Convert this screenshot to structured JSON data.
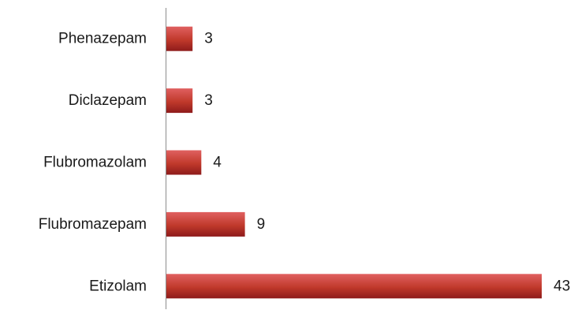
{
  "chart_data": {
    "type": "bar",
    "orientation": "horizontal",
    "categories": [
      "Phenazepam",
      "Diclazepam",
      "Flubromazolam",
      "Flubromazepam",
      "Etizolam"
    ],
    "values": [
      3,
      3,
      4,
      9,
      43
    ],
    "data_labels": [
      "3",
      "3",
      "4",
      "9",
      "43"
    ],
    "title": "",
    "xlabel": "",
    "ylabel": "",
    "xlim": [
      0,
      43
    ],
    "grid": false,
    "legend": "none",
    "colors": {
      "bar_light": "#e06060",
      "bar_mid": "#c0392b",
      "bar_dark": "#8e1b1b",
      "axis": "#8c8c8c"
    }
  }
}
